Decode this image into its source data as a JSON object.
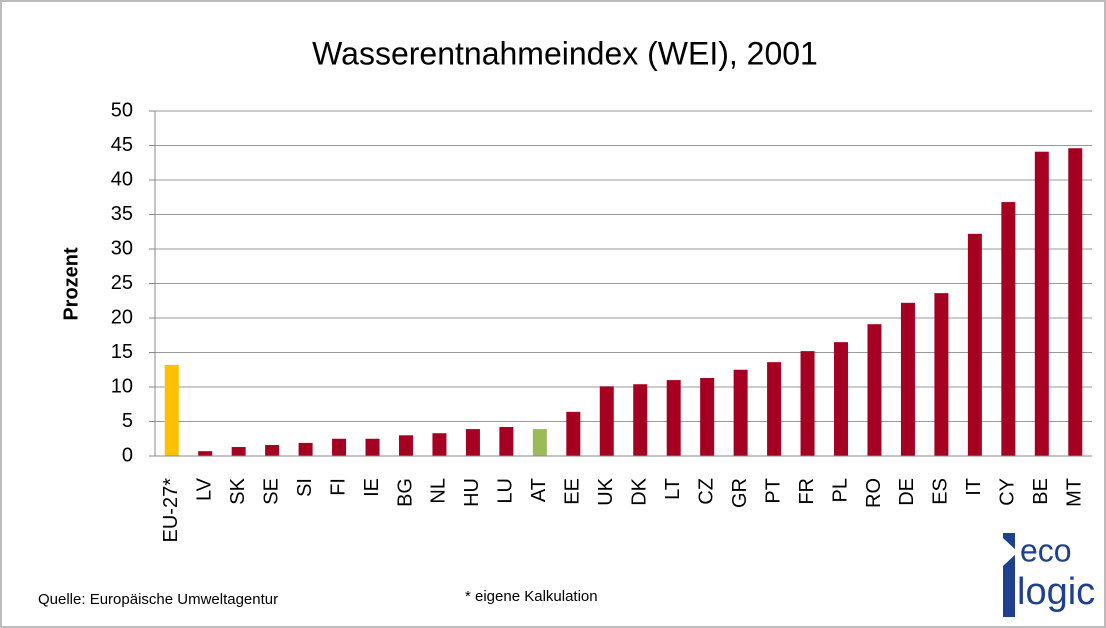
{
  "chart_data": {
    "type": "bar",
    "title": "Wasserentnahmeindex (WEI), 2001",
    "y_label": "Prozent",
    "categories": [
      "EU-27*",
      "LV",
      "SK",
      "SE",
      "SI",
      "FI",
      "IE",
      "BG",
      "NL",
      "HU",
      "LU",
      "AT",
      "EE",
      "UK",
      "DK",
      "LT",
      "CZ",
      "GR",
      "PT",
      "FR",
      "PL",
      "RO",
      "DE",
      "ES",
      "IT",
      "CY",
      "BE",
      "MT"
    ],
    "values": [
      13.2,
      0.7,
      1.3,
      1.6,
      1.9,
      2.5,
      2.5,
      3.0,
      3.3,
      3.9,
      4.2,
      3.9,
      6.4,
      10.1,
      10.4,
      11.0,
      11.3,
      12.5,
      13.6,
      15.2,
      16.5,
      19.1,
      22.2,
      23.6,
      32.2,
      36.8,
      44.1,
      44.6
    ],
    "colors": [
      "#ffc000",
      "#a50021",
      "#a50021",
      "#a50021",
      "#a50021",
      "#a50021",
      "#a50021",
      "#a50021",
      "#a50021",
      "#a50021",
      "#a50021",
      "#9bbb59",
      "#a50021",
      "#a50021",
      "#a50021",
      "#a50021",
      "#a50021",
      "#a50021",
      "#a50021",
      "#a50021",
      "#a50021",
      "#a50021",
      "#a50021",
      "#a50021",
      "#a50021",
      "#a50021",
      "#a50021",
      "#a50021"
    ],
    "ylim": [
      0,
      50
    ],
    "yticks": [
      0,
      5,
      10,
      15,
      20,
      25,
      30,
      35,
      40,
      45,
      50
    ],
    "grid": true,
    "source": "Quelle: Europäische Umweltagentur",
    "footnote": "* eigene Kalkulation",
    "logo": {
      "top": "eco",
      "bottom": "logic"
    }
  }
}
